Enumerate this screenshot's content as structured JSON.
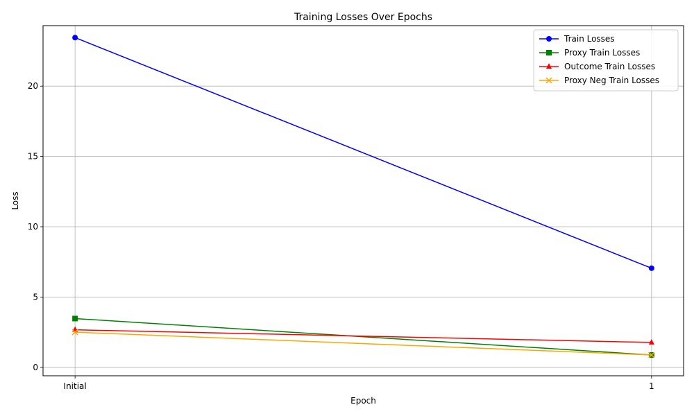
{
  "chart_data": {
    "type": "line",
    "title": "Training Losses Over Epochs",
    "xlabel": "Epoch",
    "ylabel": "Loss",
    "categories": [
      "Initial",
      "1"
    ],
    "ylim": [
      -0.6,
      24.3
    ],
    "yticks": [
      0,
      5,
      10,
      15,
      20
    ],
    "grid": true,
    "legend_position": "top-right",
    "series": [
      {
        "name": "Train Losses",
        "values": [
          23.45,
          7.05
        ],
        "color": "#0000ff",
        "marker": "circle"
      },
      {
        "name": "Proxy Train Losses",
        "values": [
          3.47,
          0.88
        ],
        "color": "#008000",
        "marker": "square"
      },
      {
        "name": "Outcome Train Losses",
        "values": [
          2.67,
          1.77
        ],
        "color": "#ff0000",
        "marker": "triangle"
      },
      {
        "name": "Proxy Neg Train Losses",
        "values": [
          2.5,
          0.88
        ],
        "color": "#ffa500",
        "marker": "x"
      }
    ]
  }
}
